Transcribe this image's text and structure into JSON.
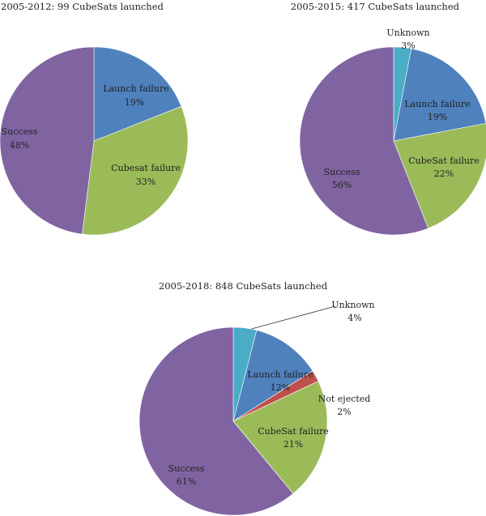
{
  "chart_data": [
    {
      "type": "pie",
      "title": "2005-2012: 99 CubeSats launched",
      "slices": [
        {
          "label": "Launch failure",
          "value": 19,
          "value_label": "19%",
          "color": "#4f81bd"
        },
        {
          "label": "Cubesat failure",
          "value": 33,
          "value_label": "33%",
          "color": "#9bbb59"
        },
        {
          "label": "Success",
          "value": 48,
          "value_label": "48%",
          "color": "#8064a2"
        }
      ]
    },
    {
      "type": "pie",
      "title": "2005-2015: 417 CubeSats launched",
      "slices": [
        {
          "label": "Unknown",
          "value": 3,
          "value_label": "3%",
          "color": "#4bacc6"
        },
        {
          "label": "Launch failure",
          "value": 19,
          "value_label": "19%",
          "color": "#4f81bd"
        },
        {
          "label": "CubeSat failure",
          "value": 22,
          "value_label": "22%",
          "color": "#9bbb59"
        },
        {
          "label": "Success",
          "value": 56,
          "value_label": "56%",
          "color": "#8064a2"
        }
      ]
    },
    {
      "type": "pie",
      "title": "2005-2018: 848 CubeSats launched",
      "slices": [
        {
          "label": "Unknown",
          "value": 4,
          "value_label": "4%",
          "color": "#4bacc6"
        },
        {
          "label": "Launch failure",
          "value": 12,
          "value_label": "12%",
          "color": "#4f81bd"
        },
        {
          "label": "Not ejected",
          "value": 2,
          "value_label": "2%",
          "color": "#c0504d"
        },
        {
          "label": "CubeSat failure",
          "value": 21,
          "value_label": "21%",
          "color": "#9bbb59"
        },
        {
          "label": "Success",
          "value": 61,
          "value_label": "61%",
          "color": "#8064a2"
        }
      ]
    }
  ]
}
